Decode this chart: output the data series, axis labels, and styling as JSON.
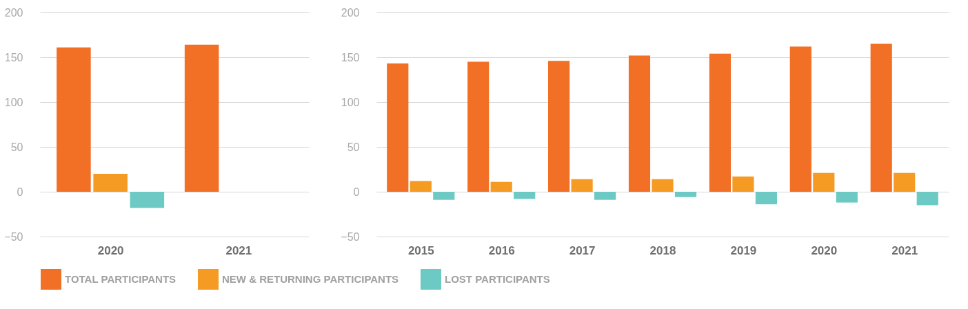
{
  "chart_data": [
    {
      "type": "bar",
      "categories": [
        "2020",
        "2021"
      ],
      "ylim": [
        -50,
        200
      ],
      "yticks": [
        -50,
        0,
        50,
        100,
        150,
        200
      ],
      "grid": "y",
      "legend": "bottom",
      "series": [
        {
          "name": "TOTAL PARTICIPANTS",
          "color": "#f26f26",
          "values": [
            161,
            164
          ]
        },
        {
          "name": "NEW & RETURNING PARTICIPANTS",
          "color": "#f59a23",
          "values": [
            20,
            null
          ]
        },
        {
          "name": "LOST PARTICIPANTS",
          "color": "#6cc9c3",
          "values": [
            -18,
            null
          ]
        }
      ]
    },
    {
      "type": "bar",
      "categories": [
        "2015",
        "2016",
        "2017",
        "2018",
        "2019",
        "2020",
        "2021"
      ],
      "ylim": [
        -50,
        200
      ],
      "yticks": [
        -50,
        0,
        50,
        100,
        150,
        200
      ],
      "grid": "y",
      "legend": "bottom",
      "series": [
        {
          "name": "TOTAL PARTICIPANTS",
          "color": "#f26f26",
          "values": [
            143,
            145,
            146,
            152,
            154,
            162,
            165
          ]
        },
        {
          "name": "NEW & RETURNING PARTICIPANTS",
          "color": "#f59a23",
          "values": [
            12,
            11,
            14,
            14,
            17,
            21,
            21
          ]
        },
        {
          "name": "LOST PARTICIPANTS",
          "color": "#6cc9c3",
          "values": [
            -9,
            -8,
            -9,
            -6,
            -14,
            -12,
            -15
          ]
        }
      ]
    }
  ]
}
